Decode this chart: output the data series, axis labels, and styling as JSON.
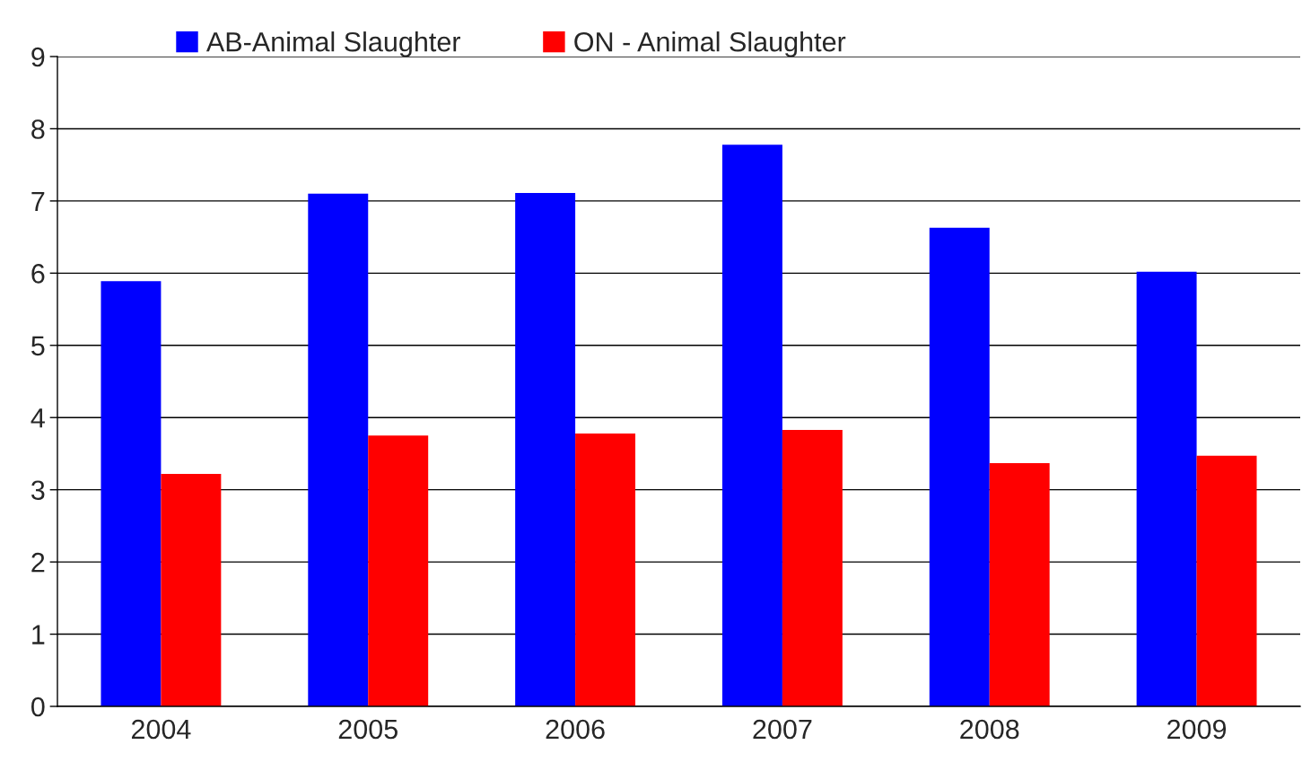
{
  "chart_data": {
    "type": "bar",
    "categories": [
      "2004",
      "2005",
      "2006",
      "2007",
      "2008",
      "2009"
    ],
    "series": [
      {
        "name": "AB-Animal Slaughter",
        "color": "#0000ff",
        "values": [
          5.89,
          7.1,
          7.11,
          7.78,
          6.63,
          6.02
        ]
      },
      {
        "name": "ON - Animal Slaughter",
        "color": "#ff0000",
        "values": [
          3.22,
          3.75,
          3.78,
          3.83,
          3.37,
          3.47
        ]
      }
    ],
    "ylim": [
      0,
      9
    ],
    "yticks": [
      0,
      1,
      2,
      3,
      4,
      5,
      6,
      7,
      8,
      9
    ],
    "grid": "y",
    "legend": "top"
  }
}
